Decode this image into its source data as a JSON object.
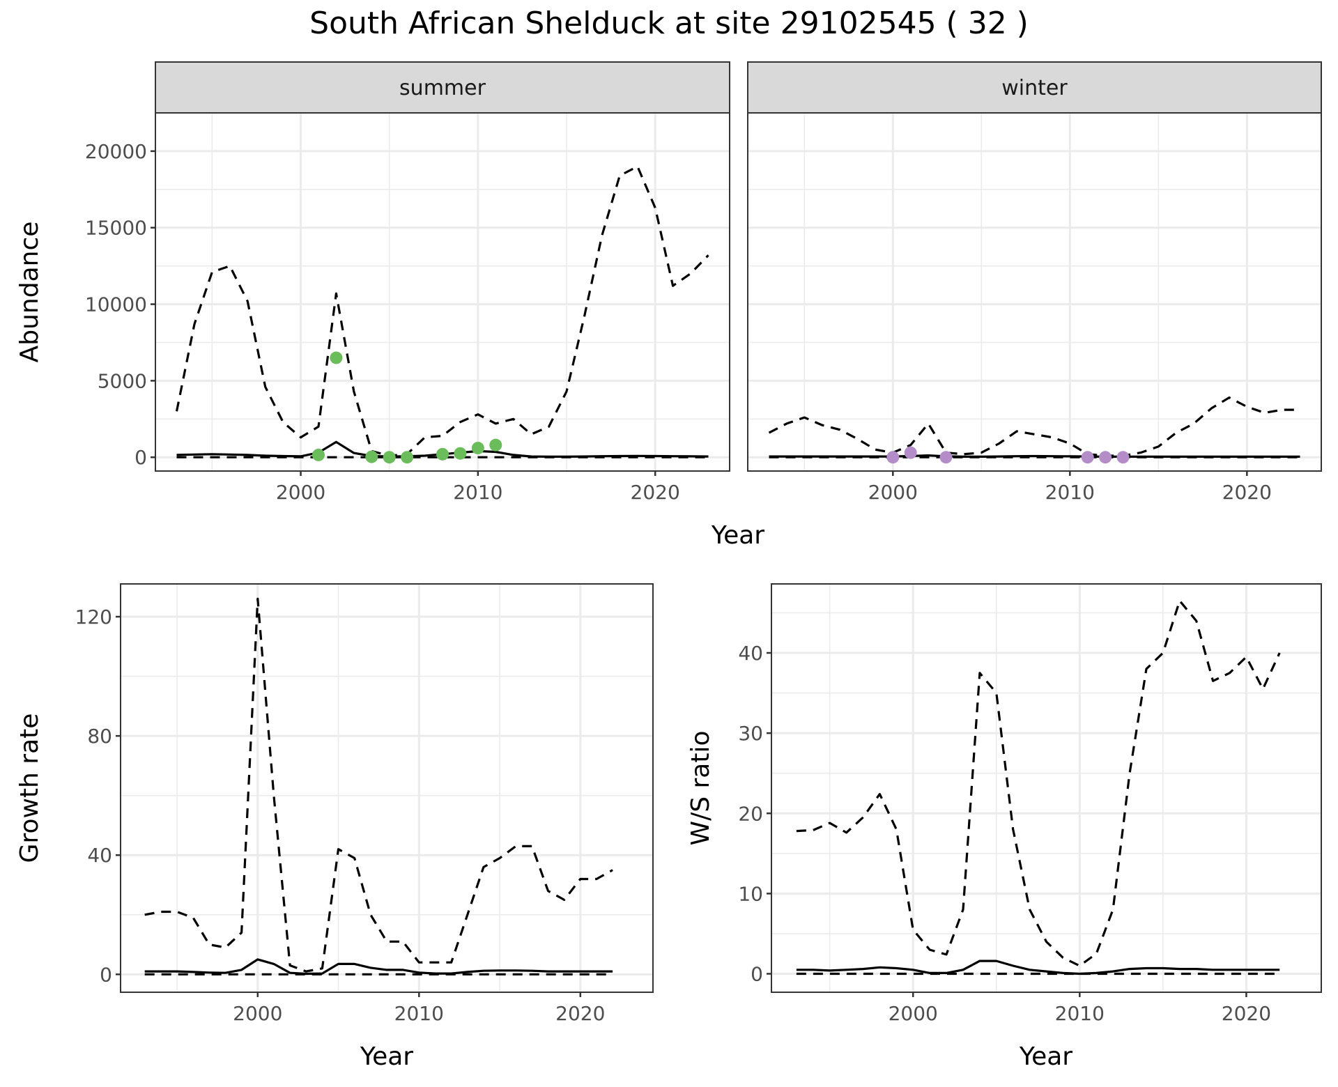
{
  "title": "South African Shelduck at site 29102545 ( 32 )",
  "colors": {
    "summer_points": "#6BBD5B",
    "winter_points": "#B48DC8",
    "strip_bg": "#D9D9D9",
    "grid": "#EBEBEB",
    "axis_text": "#4D4D4D"
  },
  "chart_data": [
    {
      "type": "line",
      "name": "abundance",
      "ylabel": "Abundance",
      "xlabel": "Year",
      "ylim": [
        -900,
        22500
      ],
      "xlim": [
        1991.8,
        2024.2
      ],
      "yticks": [
        0,
        5000,
        10000,
        15000,
        20000
      ],
      "ytick_labels": [
        "0",
        "5000",
        "10000",
        "15000",
        "20000"
      ],
      "xticks": [
        2000,
        2010,
        2020
      ],
      "xtick_labels": [
        "2000",
        "2010",
        "2020"
      ],
      "grid": true,
      "facets": [
        {
          "label": "summer",
          "x": [
            1993,
            1994,
            1995,
            1996,
            1997,
            1998,
            1999,
            2000,
            2001,
            2002,
            2003,
            2004,
            2005,
            2006,
            2007,
            2008,
            2009,
            2010,
            2011,
            2012,
            2013,
            2014,
            2015,
            2016,
            2017,
            2018,
            2019,
            2020,
            2021,
            2022,
            2023
          ],
          "series": [
            {
              "name": "upper",
              "style": "dashed",
              "values": [
                3000,
                8700,
                12100,
                12500,
                10200,
                4600,
                2300,
                1300,
                2000,
                10700,
                4300,
                400,
                100,
                200,
                1300,
                1400,
                2300,
                2800,
                2200,
                2500,
                1500,
                2000,
                4300,
                9200,
                14500,
                18400,
                19000,
                16300,
                11200,
                12000,
                13200
              ]
            },
            {
              "name": "mean",
              "style": "solid",
              "values": [
                150,
                180,
                200,
                180,
                150,
                100,
                80,
                60,
                300,
                1000,
                280,
                80,
                50,
                60,
                100,
                200,
                300,
                400,
                350,
                150,
                50,
                40,
                40,
                50,
                70,
                80,
                90,
                80,
                70,
                60,
                50
              ]
            },
            {
              "name": "lower",
              "style": "dashed",
              "values": [
                0,
                0,
                0,
                0,
                0,
                0,
                0,
                0,
                0,
                0,
                0,
                0,
                0,
                0,
                0,
                0,
                0,
                0,
                0,
                0,
                0,
                0,
                0,
                0,
                0,
                0,
                0,
                0,
                0,
                0,
                0
              ]
            }
          ],
          "points": {
            "x": [
              2001,
              2002,
              2004,
              2005,
              2006,
              2008,
              2009,
              2010,
              2011
            ],
            "y": [
              150,
              6500,
              30,
              0,
              0,
              200,
              250,
              600,
              800
            ]
          }
        },
        {
          "label": "winter",
          "x": [
            1993,
            1994,
            1995,
            1996,
            1997,
            1998,
            1999,
            2000,
            2001,
            2002,
            2003,
            2004,
            2005,
            2006,
            2007,
            2008,
            2009,
            2010,
            2011,
            2012,
            2013,
            2014,
            2015,
            2016,
            2017,
            2018,
            2019,
            2020,
            2021,
            2022,
            2023
          ],
          "series": [
            {
              "name": "upper",
              "style": "dashed",
              "values": [
                1600,
                2200,
                2600,
                2100,
                1800,
                1200,
                500,
                300,
                800,
                2200,
                300,
                200,
                300,
                900,
                1700,
                1500,
                1300,
                900,
                200,
                100,
                100,
                300,
                700,
                1600,
                2200,
                3200,
                3900,
                3300,
                2900,
                3100,
                3100
              ]
            },
            {
              "name": "mean",
              "style": "solid",
              "values": [
                50,
                50,
                50,
                50,
                50,
                50,
                50,
                50,
                80,
                120,
                60,
                40,
                40,
                50,
                70,
                80,
                70,
                60,
                50,
                40,
                40,
                40,
                40,
                40,
                40,
                40,
                40,
                40,
                40,
                40,
                40
              ]
            },
            {
              "name": "lower",
              "style": "dashed",
              "values": [
                0,
                0,
                0,
                0,
                0,
                0,
                0,
                0,
                0,
                0,
                0,
                0,
                0,
                0,
                0,
                0,
                0,
                0,
                0,
                0,
                0,
                0,
                0,
                0,
                0,
                0,
                0,
                0,
                0,
                0,
                0
              ]
            }
          ],
          "points": {
            "x": [
              2000,
              2001,
              2003,
              2011,
              2012,
              2013
            ],
            "y": [
              0,
              300,
              0,
              0,
              0,
              0
            ]
          }
        }
      ]
    },
    {
      "type": "line",
      "name": "growth",
      "ylabel": "Growth rate",
      "xlabel": "Year",
      "ylim": [
        -6,
        131
      ],
      "xlim": [
        1991.5,
        2024.5
      ],
      "yticks": [
        0,
        40,
        80,
        120
      ],
      "ytick_labels": [
        "0",
        "40",
        "80",
        "120"
      ],
      "xticks": [
        2000,
        2010,
        2020
      ],
      "xtick_labels": [
        "2000",
        "2010",
        "2020"
      ],
      "grid": true,
      "x": [
        1993,
        1994,
        1995,
        1996,
        1997,
        1998,
        1999,
        2000,
        2001,
        2002,
        2003,
        2004,
        2005,
        2006,
        2007,
        2008,
        2009,
        2010,
        2011,
        2012,
        2013,
        2014,
        2015,
        2016,
        2017,
        2018,
        2019,
        2020,
        2021,
        2022
      ],
      "series": [
        {
          "name": "upper",
          "style": "dashed",
          "values": [
            20,
            21,
            21,
            19,
            10,
            9,
            14,
            126,
            60,
            3,
            1,
            2,
            42,
            39,
            20,
            11,
            11,
            4,
            4,
            4,
            20,
            36,
            39,
            43,
            43,
            28,
            25,
            32,
            32,
            35
          ]
        },
        {
          "name": "mean",
          "style": "solid",
          "values": [
            1,
            1,
            1,
            0.8,
            0.6,
            0.5,
            1.5,
            5,
            3.5,
            0.5,
            0.2,
            0.3,
            3.5,
            3.5,
            2.2,
            1.5,
            1.5,
            0.6,
            0.3,
            0.3,
            0.8,
            1.2,
            1.3,
            1.3,
            1.2,
            1,
            1,
            1,
            1,
            1
          ]
        },
        {
          "name": "lower",
          "style": "dashed",
          "values": [
            0,
            0,
            0,
            0,
            0,
            0,
            0,
            0,
            0,
            0,
            0,
            0,
            0,
            0,
            0,
            0,
            0,
            0,
            0,
            0,
            0,
            0,
            0,
            0,
            0,
            0,
            0,
            0,
            0,
            0
          ]
        }
      ]
    },
    {
      "type": "line",
      "name": "ratio",
      "ylabel": "W/S ratio",
      "xlabel": "Year",
      "ylim": [
        -2.3,
        48.6
      ],
      "xlim": [
        1991.5,
        2024.5
      ],
      "yticks": [
        0,
        10,
        20,
        30,
        40
      ],
      "ytick_labels": [
        "0",
        "10",
        "20",
        "30",
        "40"
      ],
      "xticks": [
        2000,
        2010,
        2020
      ],
      "xtick_labels": [
        "2000",
        "2010",
        "2020"
      ],
      "grid": true,
      "x": [
        1993,
        1994,
        1995,
        1996,
        1997,
        1998,
        1999,
        2000,
        2001,
        2002,
        2003,
        2004,
        2005,
        2006,
        2007,
        2008,
        2009,
        2010,
        2011,
        2012,
        2013,
        2014,
        2015,
        2016,
        2017,
        2018,
        2019,
        2020,
        2021,
        2022
      ],
      "series": [
        {
          "name": "upper",
          "style": "dashed",
          "values": [
            17.8,
            17.9,
            18.8,
            17.6,
            19.5,
            22.4,
            18,
            5.5,
            3,
            2.4,
            8,
            37.5,
            35,
            18,
            8,
            4,
            2,
            1,
            2.5,
            8,
            25,
            38,
            40,
            46.5,
            44,
            36.5,
            37.5,
            39.5,
            35.5,
            40
          ]
        },
        {
          "name": "mean",
          "style": "solid",
          "values": [
            0.5,
            0.5,
            0.4,
            0.5,
            0.6,
            0.8,
            0.7,
            0.5,
            0.1,
            0.1,
            0.5,
            1.6,
            1.6,
            1,
            0.5,
            0.3,
            0.1,
            0,
            0.1,
            0.3,
            0.6,
            0.7,
            0.7,
            0.6,
            0.6,
            0.5,
            0.5,
            0.5,
            0.5,
            0.5
          ]
        },
        {
          "name": "lower",
          "style": "dashed",
          "values": [
            0,
            0,
            0,
            0,
            0,
            0,
            0,
            0,
            0,
            0,
            0,
            0,
            0,
            0,
            0,
            0,
            0,
            0,
            0,
            0,
            0,
            0,
            0,
            0,
            0,
            0,
            0,
            0,
            0,
            0
          ]
        }
      ]
    }
  ]
}
